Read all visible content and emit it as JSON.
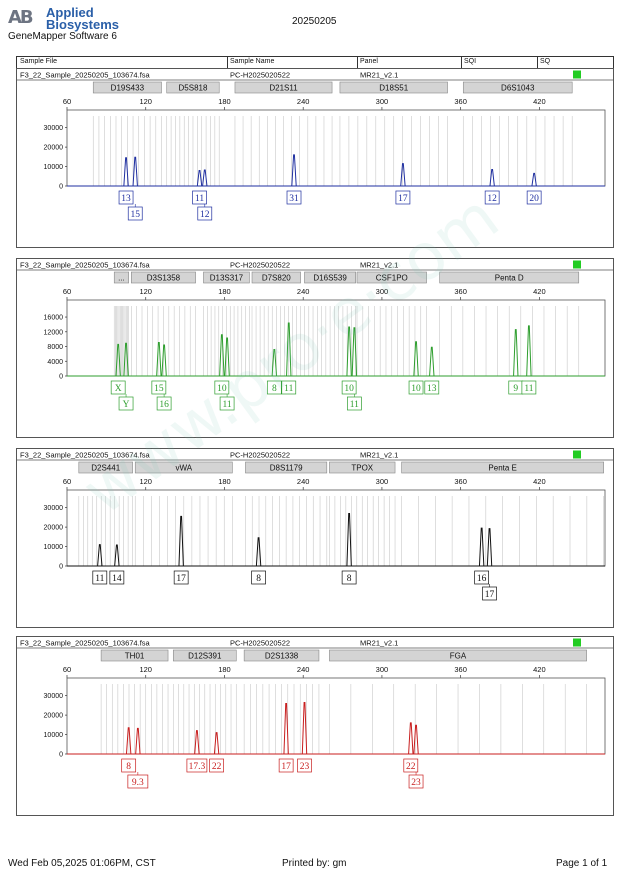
{
  "header": {
    "logo_mark": "AB",
    "brand_line1": "Applied",
    "brand_line2": "Biosystems",
    "software": "GeneMapper Software 6",
    "report_date": "20250205"
  },
  "table_header": {
    "sample_file": "Sample File",
    "sample_name": "Sample Name",
    "panel": "Panel",
    "sqi": "SQI",
    "sq": "SQ"
  },
  "colors": {
    "blue": "#1f2fa0",
    "green": "#2e9e2e",
    "black": "#111111",
    "red": "#c81e1e",
    "status_green": "#22cc22",
    "marker_box": "#d4d4d4"
  },
  "footer": {
    "printed_at": "Wed Feb 05,2025 01:06PM, CST",
    "printed_by": "Printed by: gm",
    "page": "Page 1 of 1"
  },
  "chart_data": [
    {
      "type": "line",
      "dye": "blue",
      "sample_file": "F3_22_Sample_20250205_103674.fsa",
      "sample_name": "PC-H2025020522",
      "panel": "MR21_v2.1",
      "x_ticks": [
        60,
        120,
        180,
        240,
        300,
        360,
        420
      ],
      "xlim": [
        60,
        470
      ],
      "y_ticks": [
        0,
        10000,
        20000,
        30000
      ],
      "ylim": [
        0,
        36000
      ],
      "markers": [
        {
          "name": "D19S433",
          "start": 80,
          "end": 132
        },
        {
          "name": "D5S818",
          "start": 136,
          "end": 176
        },
        {
          "name": "D21S11",
          "start": 188,
          "end": 262
        },
        {
          "name": "D18S51",
          "start": 268,
          "end": 350
        },
        {
          "name": "D6S1043",
          "start": 362,
          "end": 445
        }
      ],
      "peaks": [
        {
          "x": 105,
          "h": 14500,
          "allele": "13",
          "row": 1
        },
        {
          "x": 112,
          "h": 14800,
          "allele": "15",
          "row": 2
        },
        {
          "x": 161,
          "h": 8000,
          "allele": "11",
          "row": 1
        },
        {
          "x": 165,
          "h": 8200,
          "allele": "12",
          "row": 2
        },
        {
          "x": 233,
          "h": 16000,
          "allele": "31",
          "row": 1
        },
        {
          "x": 316,
          "h": 11500,
          "allele": "17",
          "row": 1
        },
        {
          "x": 384,
          "h": 8500,
          "allele": "12",
          "row": 1
        },
        {
          "x": 416,
          "h": 6500,
          "allele": "20",
          "row": 1
        }
      ]
    },
    {
      "type": "line",
      "dye": "green",
      "sample_file": "F3_22_Sample_20250205_103674.fsa",
      "sample_name": "PC-H2025020522",
      "panel": "MR21_v2.1",
      "x_ticks": [
        60,
        120,
        180,
        240,
        300,
        360,
        420
      ],
      "xlim": [
        60,
        470
      ],
      "y_ticks": [
        0,
        4000,
        8000,
        12000,
        16000
      ],
      "ylim": [
        0,
        19000
      ],
      "markers": [
        {
          "name": "...",
          "start": 96,
          "end": 107
        },
        {
          "name": "D3S1358",
          "start": 109,
          "end": 158
        },
        {
          "name": "D13S317",
          "start": 164,
          "end": 199
        },
        {
          "name": "D7S820",
          "start": 201,
          "end": 238
        },
        {
          "name": "D16S539",
          "start": 241,
          "end": 280
        },
        {
          "name": "CSF1PO",
          "start": 281,
          "end": 334
        },
        {
          "name": "Penta D",
          "start": 344,
          "end": 450
        }
      ],
      "peaks": [
        {
          "x": 99,
          "h": 8600,
          "allele": "X",
          "row": 1
        },
        {
          "x": 105,
          "h": 8900,
          "allele": "Y",
          "row": 2
        },
        {
          "x": 130,
          "h": 9100,
          "allele": "15",
          "row": 1
        },
        {
          "x": 134,
          "h": 8400,
          "allele": "16",
          "row": 2
        },
        {
          "x": 178,
          "h": 11200,
          "allele": "10",
          "row": 1
        },
        {
          "x": 182,
          "h": 10300,
          "allele": "11",
          "row": 2
        },
        {
          "x": 218,
          "h": 7200,
          "allele": "8",
          "row": 1
        },
        {
          "x": 229,
          "h": 14400,
          "allele": "11",
          "row": 1
        },
        {
          "x": 275,
          "h": 13300,
          "allele": "10",
          "row": 1
        },
        {
          "x": 279,
          "h": 13100,
          "allele": "11",
          "row": 2
        },
        {
          "x": 326,
          "h": 9300,
          "allele": "10",
          "row": 1
        },
        {
          "x": 338,
          "h": 7800,
          "allele": "13",
          "row": 1
        },
        {
          "x": 402,
          "h": 12600,
          "allele": "9",
          "row": 1
        },
        {
          "x": 412,
          "h": 13600,
          "allele": "11",
          "row": 1
        }
      ]
    },
    {
      "type": "line",
      "dye": "black",
      "sample_file": "F3_22_Sample_20250205_103674.fsa",
      "sample_name": "PC-H2025020522",
      "panel": "MR21_v2.1",
      "x_ticks": [
        60,
        120,
        180,
        240,
        300,
        360,
        420
      ],
      "xlim": [
        60,
        470
      ],
      "y_ticks": [
        0,
        10000,
        20000,
        30000
      ],
      "ylim": [
        0,
        36000
      ],
      "markers": [
        {
          "name": "D2S441",
          "start": 69,
          "end": 110
        },
        {
          "name": "vWA",
          "start": 112,
          "end": 186
        },
        {
          "name": "D8S1179",
          "start": 196,
          "end": 258
        },
        {
          "name": "TPOX",
          "start": 260,
          "end": 310
        },
        {
          "name": "Penta E",
          "start": 315,
          "end": 469
        }
      ],
      "peaks": [
        {
          "x": 85,
          "h": 11000,
          "allele": "11",
          "row": 1
        },
        {
          "x": 98,
          "h": 10800,
          "allele": "14",
          "row": 1
        },
        {
          "x": 147,
          "h": 25500,
          "allele": "17",
          "row": 1
        },
        {
          "x": 206,
          "h": 14500,
          "allele": "8",
          "row": 1
        },
        {
          "x": 275,
          "h": 27000,
          "allele": "8",
          "row": 1
        },
        {
          "x": 376,
          "h": 19500,
          "allele": "16",
          "row": 1
        },
        {
          "x": 382,
          "h": 19200,
          "allele": "17",
          "row": 2
        }
      ]
    },
    {
      "type": "line",
      "dye": "red",
      "sample_file": "F3_22_Sample_20250205_103674.fsa",
      "sample_name": "PC-H2025020522",
      "panel": "MR21_v2.1",
      "x_ticks": [
        60,
        120,
        180,
        240,
        300,
        360,
        420
      ],
      "xlim": [
        60,
        470
      ],
      "y_ticks": [
        0,
        10000,
        20000,
        30000
      ],
      "ylim": [
        0,
        36000
      ],
      "markers": [
        {
          "name": "TH01",
          "start": 86,
          "end": 137
        },
        {
          "name": "D12S391",
          "start": 141,
          "end": 189
        },
        {
          "name": "D2S1338",
          "start": 195,
          "end": 252
        },
        {
          "name": "FGA",
          "start": 260,
          "end": 456
        }
      ],
      "peaks": [
        {
          "x": 107,
          "h": 13500,
          "allele": "8",
          "row": 1
        },
        {
          "x": 114,
          "h": 13200,
          "allele": "9.3",
          "row": 2
        },
        {
          "x": 159,
          "h": 12000,
          "allele": "17.3",
          "row": 1
        },
        {
          "x": 174,
          "h": 11000,
          "allele": "22",
          "row": 1
        },
        {
          "x": 227,
          "h": 26000,
          "allele": "17",
          "row": 1
        },
        {
          "x": 241,
          "h": 26500,
          "allele": "23",
          "row": 1
        },
        {
          "x": 322,
          "h": 16000,
          "allele": "22",
          "row": 1
        },
        {
          "x": 326,
          "h": 14800,
          "allele": "23",
          "row": 2
        }
      ]
    }
  ]
}
